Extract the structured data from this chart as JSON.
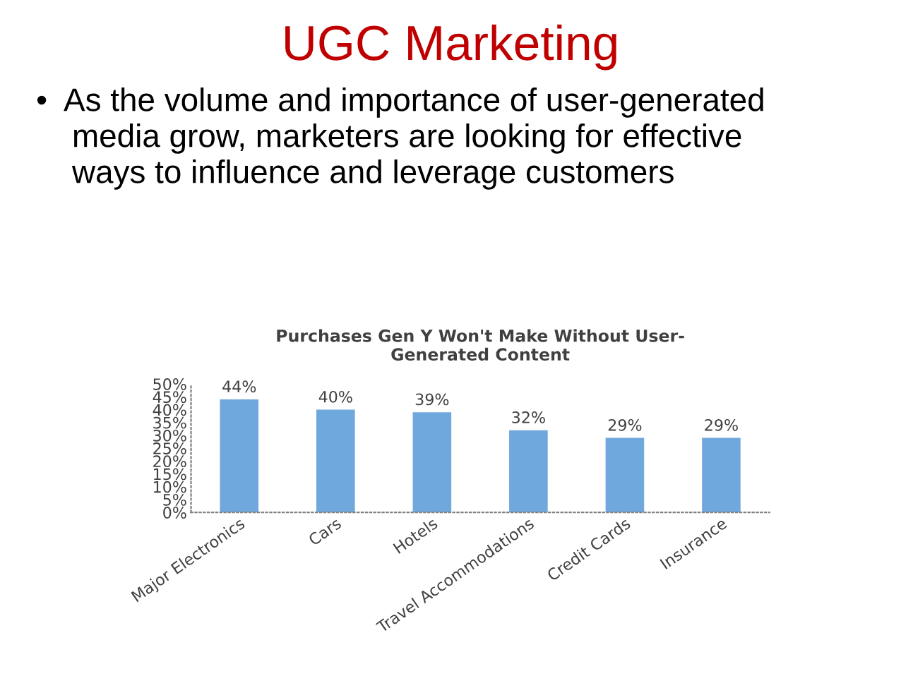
{
  "chart_data": {
    "type": "bar",
    "title": "Purchases Gen Y Won't Make Without User-\nGenerated Content",
    "annotations": [
      "UGC Marketing",
      "•  As the volume and importance of user-generated\n    media grow, marketers are looking for effective\n    ways to influence and leverage customers"
    ],
    "categories": [
      "Major Electronics",
      "Cars",
      "Hotels",
      "Travel Accommodations",
      "Credit Cards",
      "Insurance"
    ],
    "values": [
      44,
      40,
      39,
      32,
      29,
      29
    ],
    "value_labels": [
      "44%",
      "40%",
      "39%",
      "32%",
      "29%",
      "29%"
    ],
    "color": "#6fa8dc",
    "ylim": [
      0,
      50
    ],
    "yticks": [
      {
        "value": 0,
        "label": "0%"
      },
      {
        "value": 5,
        "label": "5%"
      },
      {
        "value": 10,
        "label": "10%"
      },
      {
        "value": 15,
        "label": "15%"
      },
      {
        "value": 20,
        "label": "20%"
      },
      {
        "value": 25,
        "label": "25%"
      },
      {
        "value": 30,
        "label": "30%"
      },
      {
        "value": 35,
        "label": "35%"
      },
      {
        "value": 40,
        "label": "40%"
      },
      {
        "value": 45,
        "label": "45%"
      },
      {
        "value": 50,
        "label": "50%"
      }
    ],
    "grid": false,
    "legend": false
  }
}
